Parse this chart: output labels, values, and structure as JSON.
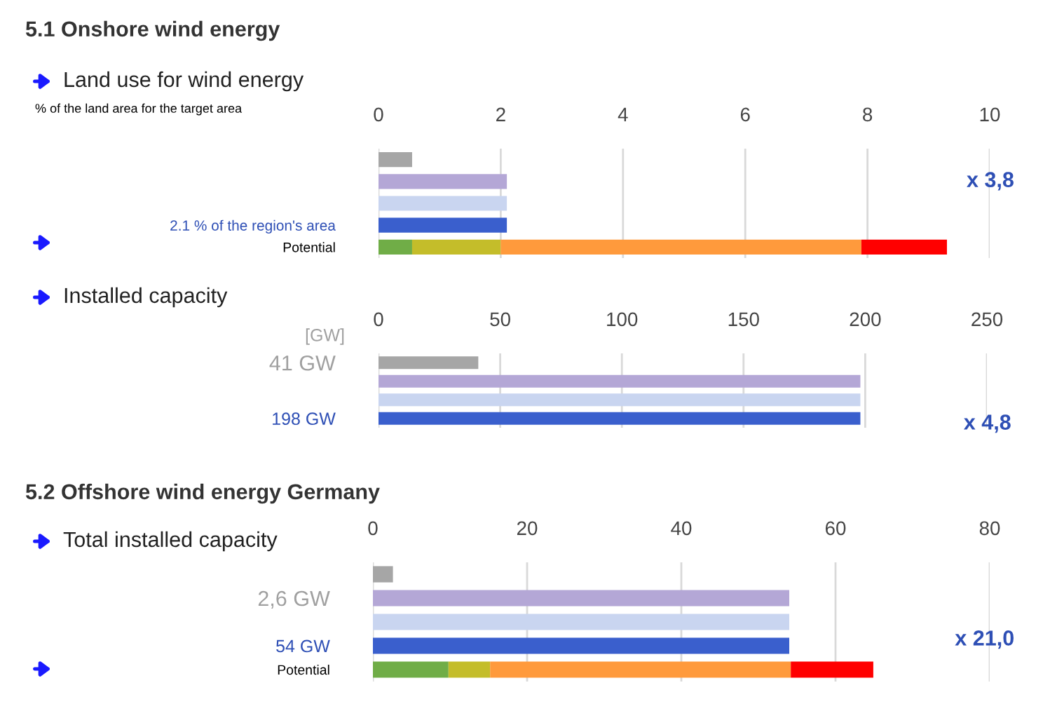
{
  "chart_data": [
    {
      "type": "bar",
      "orientation": "horizontal",
      "stacked": true,
      "title": "5.1 Onshore wind energy",
      "subtitle": "Land use for wind energy",
      "xlabel": "% of the land area for the target area",
      "categories": [
        null,
        null,
        null,
        "2.1 % of the region's area",
        "Potential"
      ],
      "series": [
        {
          "colors": [
            "#a6a6a6",
            "#b4a7d6",
            "#c9d5f0",
            "#3a5fcd",
            null
          ],
          "values": [
            0.55,
            2.1,
            2.1,
            2.1,
            null
          ]
        },
        {
          "color": "#70ad47",
          "values": [
            null,
            null,
            null,
            null,
            0.55
          ]
        },
        {
          "color": "#c4bd2a",
          "values": [
            null,
            null,
            null,
            null,
            1.45
          ]
        },
        {
          "color": "#ff9a3c",
          "values": [
            null,
            null,
            null,
            null,
            5.9
          ]
        },
        {
          "color": "#ff0000",
          "values": [
            null,
            null,
            null,
            null,
            1.4
          ]
        }
      ],
      "xlim": [
        0,
        10
      ],
      "xticks": [
        0,
        2,
        4,
        6,
        8,
        10
      ],
      "grid": "x",
      "annotations": [
        "x 3,8"
      ]
    },
    {
      "type": "bar",
      "orientation": "horizontal",
      "stacked": true,
      "subtitle": "Installed capacity",
      "xlabel": "[GW]",
      "categories": [
        "41 GW",
        null,
        null,
        "198 GW"
      ],
      "series": [
        {
          "colors": [
            "#a6a6a6",
            "#b4a7d6",
            "#c9d5f0",
            "#3a5fcd"
          ],
          "values": [
            41,
            198,
            198,
            198
          ]
        }
      ],
      "xlim": [
        0,
        250
      ],
      "xticks": [
        0,
        50,
        100,
        150,
        200,
        250
      ],
      "grid": "x",
      "annotations": [
        "x 4,8"
      ]
    },
    {
      "type": "bar",
      "orientation": "horizontal",
      "stacked": true,
      "title": "5.2 Offshore wind energy Germany",
      "subtitle": "Total installed capacity",
      "categories": [
        null,
        "2,6 GW",
        null,
        "54 GW",
        "Potential"
      ],
      "series": [
        {
          "colors": [
            "#a6a6a6",
            "#b4a7d6",
            "#c9d5f0",
            "#3a5fcd",
            null
          ],
          "values": [
            2.6,
            54,
            54,
            54,
            null
          ]
        },
        {
          "color": "#70ad47",
          "values": [
            null,
            null,
            null,
            null,
            9.8
          ]
        },
        {
          "color": "#c4bd2a",
          "values": [
            null,
            null,
            null,
            null,
            5.4
          ]
        },
        {
          "color": "#ff9a3c",
          "values": [
            null,
            null,
            null,
            null,
            39
          ]
        },
        {
          "color": "#ff0000",
          "values": [
            null,
            null,
            null,
            null,
            10.7
          ]
        }
      ],
      "xlim": [
        0,
        80
      ],
      "xticks": [
        0,
        20,
        40,
        60,
        80
      ],
      "grid": "x",
      "annotations": [
        "x 21,0"
      ]
    }
  ]
}
